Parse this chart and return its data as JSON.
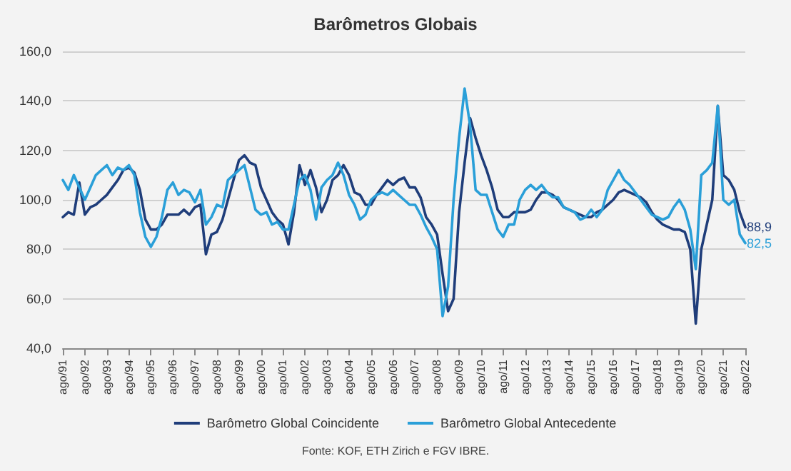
{
  "chart_data": {
    "type": "line",
    "title": "Barômetros Globais",
    "categories": [
      "ago/91",
      null,
      null,
      null,
      "ago/92",
      null,
      null,
      null,
      "ago/93",
      null,
      null,
      null,
      "ago/94",
      null,
      null,
      null,
      "ago/95",
      null,
      null,
      null,
      "ago/96",
      null,
      null,
      null,
      "ago/97",
      null,
      null,
      null,
      "ago/98",
      null,
      null,
      null,
      "ago/99",
      null,
      null,
      null,
      "ago/00",
      null,
      null,
      null,
      "ago/01",
      null,
      null,
      null,
      "ago/02",
      null,
      null,
      null,
      "ago/03",
      null,
      null,
      null,
      "ago/04",
      null,
      null,
      null,
      "ago/05",
      null,
      null,
      null,
      "ago/06",
      null,
      null,
      null,
      "ago/07",
      null,
      null,
      null,
      "ago/08",
      null,
      null,
      null,
      "ago/09",
      null,
      null,
      null,
      "ago/10",
      null,
      null,
      null,
      "ago/11",
      null,
      null,
      null,
      "ago/12",
      null,
      null,
      null,
      "ago/13",
      null,
      null,
      null,
      "ago/14",
      null,
      null,
      null,
      "ago/15",
      null,
      null,
      null,
      "ago/16",
      null,
      null,
      null,
      "ago/17",
      null,
      null,
      null,
      "ago/18",
      null,
      null,
      null,
      "ago/19",
      null,
      null,
      null,
      "ago/20",
      null,
      null,
      null,
      "ago/21",
      null,
      null,
      null,
      "ago/22"
    ],
    "series": [
      {
        "name": "Barômetro Global Coincidente",
        "color": "#1f3d7a",
        "values": [
          93,
          95,
          94,
          107,
          94,
          97,
          98,
          100,
          102,
          105,
          108,
          112,
          113,
          111,
          104,
          92,
          88,
          88,
          90,
          94,
          94,
          94,
          96,
          94,
          97,
          98,
          78,
          86,
          87,
          92,
          100,
          108,
          116,
          118,
          115,
          114,
          105,
          100,
          95,
          92,
          90,
          82,
          95,
          114,
          106,
          112,
          105,
          95,
          100,
          108,
          110,
          114,
          110,
          103,
          102,
          98,
          98,
          102,
          105,
          108,
          106,
          108,
          109,
          105,
          105,
          101,
          93,
          90,
          86,
          70,
          55,
          60,
          95,
          115,
          133,
          125,
          118,
          112,
          105,
          96,
          93,
          93,
          95,
          95,
          95,
          96,
          100,
          103,
          103,
          102,
          100,
          97,
          96,
          95,
          94,
          93,
          93,
          95,
          96,
          98,
          100,
          103,
          104,
          103,
          102,
          101,
          99,
          95,
          92,
          90,
          89,
          88,
          88,
          87,
          80,
          50,
          80,
          90,
          100,
          138,
          110,
          108,
          104,
          95,
          88.9
        ],
        "value_labels": [
          null,
          null,
          null,
          null,
          null,
          null,
          null,
          null,
          null,
          null,
          null,
          null,
          null,
          null,
          null,
          null,
          null,
          null,
          null,
          null,
          null,
          null,
          null,
          null,
          null,
          null,
          null,
          null,
          null,
          null,
          null,
          null,
          null,
          null,
          null,
          null,
          null,
          null,
          null,
          null,
          null,
          null,
          null,
          null,
          null,
          null,
          null,
          null,
          null,
          null,
          null,
          null,
          null,
          null,
          null,
          null,
          null,
          null,
          null,
          null,
          null,
          null,
          null,
          null,
          null,
          null,
          null,
          null,
          null,
          null,
          null,
          null,
          null,
          null,
          null,
          null,
          null,
          null,
          null,
          null,
          null,
          null,
          null,
          null,
          null,
          null,
          null,
          null,
          null,
          null,
          null,
          null,
          null,
          null,
          null,
          null,
          null,
          null,
          null,
          null,
          null,
          null,
          null,
          null,
          null,
          null,
          null,
          null,
          null,
          null,
          null,
          null,
          null,
          null,
          null,
          null,
          null,
          null,
          null,
          null,
          null,
          null,
          null,
          null,
          "88,9"
        ]
      },
      {
        "name": "Barômetro Global Antecedente",
        "color": "#2a9fd8",
        "values": [
          108,
          104,
          110,
          105,
          100,
          105,
          110,
          112,
          114,
          110,
          113,
          112,
          114,
          110,
          95,
          85,
          81,
          85,
          93,
          104,
          107,
          102,
          104,
          103,
          99,
          104,
          90,
          93,
          98,
          97,
          108,
          110,
          112,
          114,
          105,
          96,
          94,
          95,
          90,
          91,
          88,
          88,
          98,
          108,
          110,
          104,
          92,
          105,
          108,
          110,
          115,
          110,
          102,
          98,
          92,
          94,
          100,
          102,
          103,
          102,
          104,
          102,
          100,
          98,
          98,
          94,
          89,
          85,
          80,
          53,
          65,
          100,
          125,
          145,
          130,
          104,
          102,
          102,
          95,
          88,
          85,
          90,
          90,
          100,
          104,
          106,
          104,
          106,
          103,
          101,
          101,
          97,
          96,
          95,
          92,
          93,
          96,
          93,
          96,
          104,
          108,
          112,
          108,
          106,
          103,
          100,
          97,
          94,
          93,
          92,
          93,
          97,
          100,
          96,
          88,
          72,
          110,
          112,
          115,
          138,
          100,
          98,
          100,
          86,
          82.5
        ],
        "value_labels": [
          null,
          null,
          null,
          null,
          null,
          null,
          null,
          null,
          null,
          null,
          null,
          null,
          null,
          null,
          null,
          null,
          null,
          null,
          null,
          null,
          null,
          null,
          null,
          null,
          null,
          null,
          null,
          null,
          null,
          null,
          null,
          null,
          null,
          null,
          null,
          null,
          null,
          null,
          null,
          null,
          null,
          null,
          null,
          null,
          null,
          null,
          null,
          null,
          null,
          null,
          null,
          null,
          null,
          null,
          null,
          null,
          null,
          null,
          null,
          null,
          null,
          null,
          null,
          null,
          null,
          null,
          null,
          null,
          null,
          null,
          null,
          null,
          null,
          null,
          null,
          null,
          null,
          null,
          null,
          null,
          null,
          null,
          null,
          null,
          null,
          null,
          null,
          null,
          null,
          null,
          null,
          null,
          null,
          null,
          null,
          null,
          null,
          null,
          null,
          null,
          null,
          null,
          null,
          null,
          null,
          null,
          null,
          null,
          null,
          null,
          null,
          null,
          null,
          null,
          null,
          null,
          null,
          null,
          null,
          null,
          null,
          null,
          null,
          null,
          "82,5"
        ]
      }
    ],
    "ylim": [
      40,
      160
    ],
    "yticks": [
      {
        "value": 40,
        "label": "40,0"
      },
      {
        "value": 60,
        "label": "60,0"
      },
      {
        "value": 80,
        "label": "80,0"
      },
      {
        "value": 100,
        "label": "100,0"
      },
      {
        "value": 120,
        "label": "120,0"
      },
      {
        "value": 140,
        "label": "140,0"
      },
      {
        "value": 160,
        "label": "160,0"
      }
    ],
    "grid": "y",
    "legend": "bottom",
    "marker": "none",
    "line_style": "solid",
    "annotations": [
      "Fonte: KOF, ETH Zirich e FGV IBRE."
    ]
  }
}
